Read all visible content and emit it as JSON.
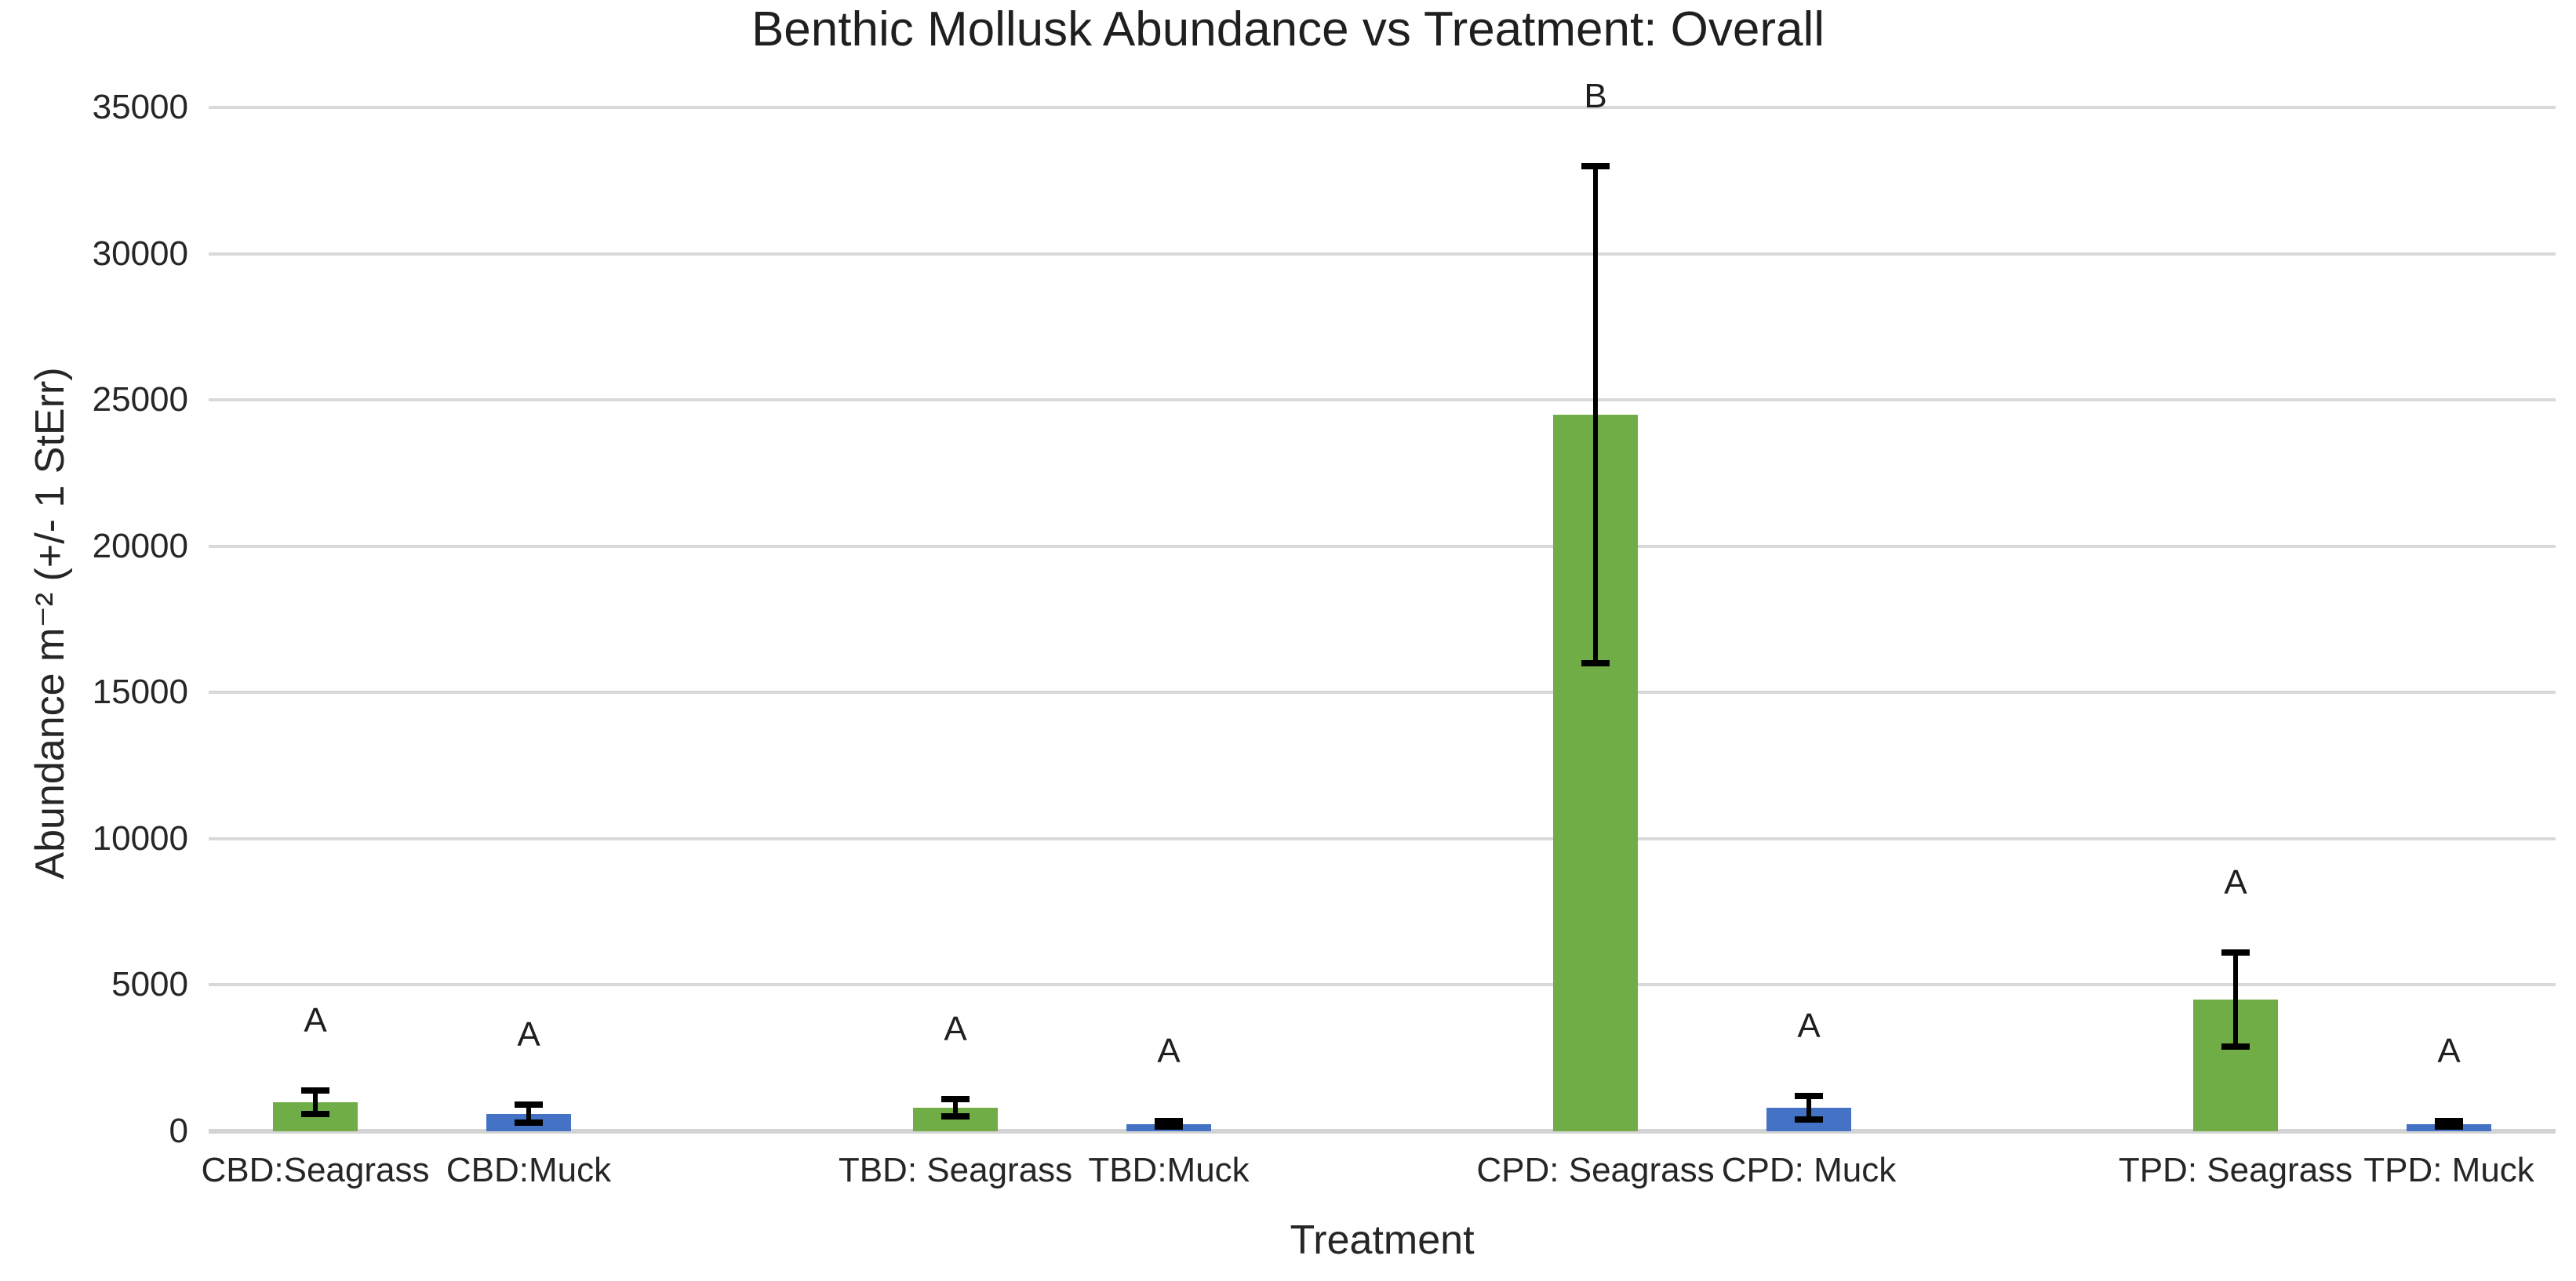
{
  "chart_data": {
    "type": "bar",
    "title": "Benthic Mollusk Abundance vs Treatment: Overall",
    "xlabel": "Treatment",
    "ylabel": "Abundance m⁻² (+/- 1 StErr)",
    "ylim": [
      0,
      35000
    ],
    "yticks": [
      0,
      5000,
      10000,
      15000,
      20000,
      25000,
      30000,
      35000
    ],
    "grid": true,
    "legend": "none",
    "slots": 11,
    "bar_width_frac": 0.4,
    "categories": [
      "CBD:Seagrass",
      "CBD:Muck",
      "TBD: Seagrass",
      "TBD:Muck",
      "CPD: Seagrass",
      "CPD: Muck",
      "TPD: Seagrass",
      "TPD: Muck"
    ],
    "bars": [
      {
        "category": "CBD:Seagrass",
        "slot": 0,
        "group": "seagrass",
        "value": 1000,
        "stderr": 400,
        "sig_letter": "A"
      },
      {
        "category": "CBD:Muck",
        "slot": 1,
        "group": "muck",
        "value": 600,
        "stderr": 300,
        "sig_letter": "A"
      },
      {
        "category": "TBD: Seagrass",
        "slot": 3,
        "group": "seagrass",
        "value": 800,
        "stderr": 300,
        "sig_letter": "A"
      },
      {
        "category": "TBD:Muck",
        "slot": 4,
        "group": "muck",
        "value": 250,
        "stderr": 100,
        "sig_letter": "A"
      },
      {
        "category": "CPD: Seagrass",
        "slot": 6,
        "group": "seagrass",
        "value": 24500,
        "stderr": 8500,
        "sig_letter": "B"
      },
      {
        "category": "CPD: Muck",
        "slot": 7,
        "group": "muck",
        "value": 800,
        "stderr": 400,
        "sig_letter": "A"
      },
      {
        "category": "TPD: Seagrass",
        "slot": 9,
        "group": "seagrass",
        "value": 4500,
        "stderr": 1600,
        "sig_letter": "A"
      },
      {
        "category": "TPD: Muck",
        "slot": 10,
        "group": "muck",
        "value": 250,
        "stderr": 100,
        "sig_letter": "A"
      }
    ],
    "colors": {
      "seagrass": "#70AD47",
      "muck": "#4472C4",
      "gridline": "#D9D9D9",
      "axis_line": "#D3D3D3",
      "error_bar": "#000000",
      "text": "#262626"
    }
  }
}
